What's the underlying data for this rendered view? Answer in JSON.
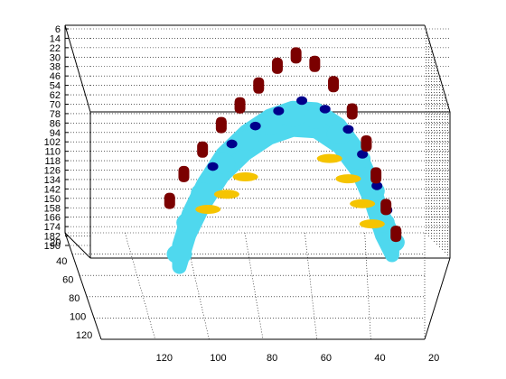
{
  "chart_data": {
    "type": "scatter",
    "plot_style": "3d",
    "title": "",
    "xlabel": "",
    "ylabel": "",
    "zlabel": "",
    "grid": true,
    "legend": "none",
    "z_axis": {
      "reversed": true,
      "lim": [
        6,
        190
      ],
      "ticks": [
        6,
        14,
        22,
        30,
        38,
        46,
        54,
        62,
        70,
        78,
        86,
        94,
        102,
        110,
        118,
        126,
        134,
        142,
        150,
        158,
        166,
        174,
        182,
        190
      ]
    },
    "x_axis": {
      "reversed": true,
      "lim": [
        10,
        130
      ],
      "ticks": [
        120,
        100,
        80,
        60,
        40,
        20
      ]
    },
    "y_axis": {
      "lim": [
        10,
        125
      ],
      "ticks": [
        20,
        40,
        60,
        80,
        100,
        120
      ]
    },
    "series": [
      {
        "color": "#4fd8ee",
        "description": "light cyan band",
        "points": [
          [
            112,
            30,
            186
          ],
          [
            108,
            34,
            160
          ],
          [
            102,
            40,
            136
          ],
          [
            94,
            46,
            112
          ],
          [
            84,
            52,
            94
          ],
          [
            74,
            58,
            82
          ],
          [
            64,
            62,
            76
          ],
          [
            54,
            66,
            78
          ],
          [
            44,
            70,
            92
          ],
          [
            36,
            74,
            114
          ],
          [
            30,
            78,
            142
          ],
          [
            26,
            84,
            170
          ],
          [
            22,
            90,
            188
          ]
        ]
      },
      {
        "color": "#f5c400",
        "description": "yellow streaks",
        "points": [
          [
            100,
            40,
            150
          ],
          [
            92,
            44,
            138
          ],
          [
            84,
            48,
            124
          ],
          [
            48,
            66,
            112
          ],
          [
            40,
            70,
            130
          ],
          [
            34,
            74,
            152
          ],
          [
            30,
            78,
            170
          ]
        ]
      },
      {
        "color": "#00008b",
        "description": "dark blue clusters",
        "points": [
          [
            98,
            42,
            114
          ],
          [
            90,
            48,
            96
          ],
          [
            80,
            54,
            82
          ],
          [
            70,
            58,
            70
          ],
          [
            60,
            62,
            62
          ],
          [
            50,
            66,
            70
          ],
          [
            40,
            70,
            88
          ],
          [
            34,
            74,
            110
          ],
          [
            28,
            80,
            138
          ],
          [
            24,
            86,
            160
          ]
        ]
      },
      {
        "color": "#7b0000",
        "description": "dark red clusters",
        "points": [
          [
            116,
            26,
            140
          ],
          [
            110,
            30,
            118
          ],
          [
            102,
            34,
            98
          ],
          [
            94,
            38,
            78
          ],
          [
            86,
            42,
            62
          ],
          [
            78,
            46,
            46
          ],
          [
            70,
            50,
            30
          ],
          [
            62,
            54,
            22
          ],
          [
            54,
            58,
            30
          ],
          [
            46,
            62,
            48
          ],
          [
            38,
            66,
            72
          ],
          [
            32,
            70,
            100
          ],
          [
            28,
            74,
            128
          ],
          [
            24,
            80,
            156
          ],
          [
            20,
            86,
            180
          ]
        ]
      }
    ]
  }
}
